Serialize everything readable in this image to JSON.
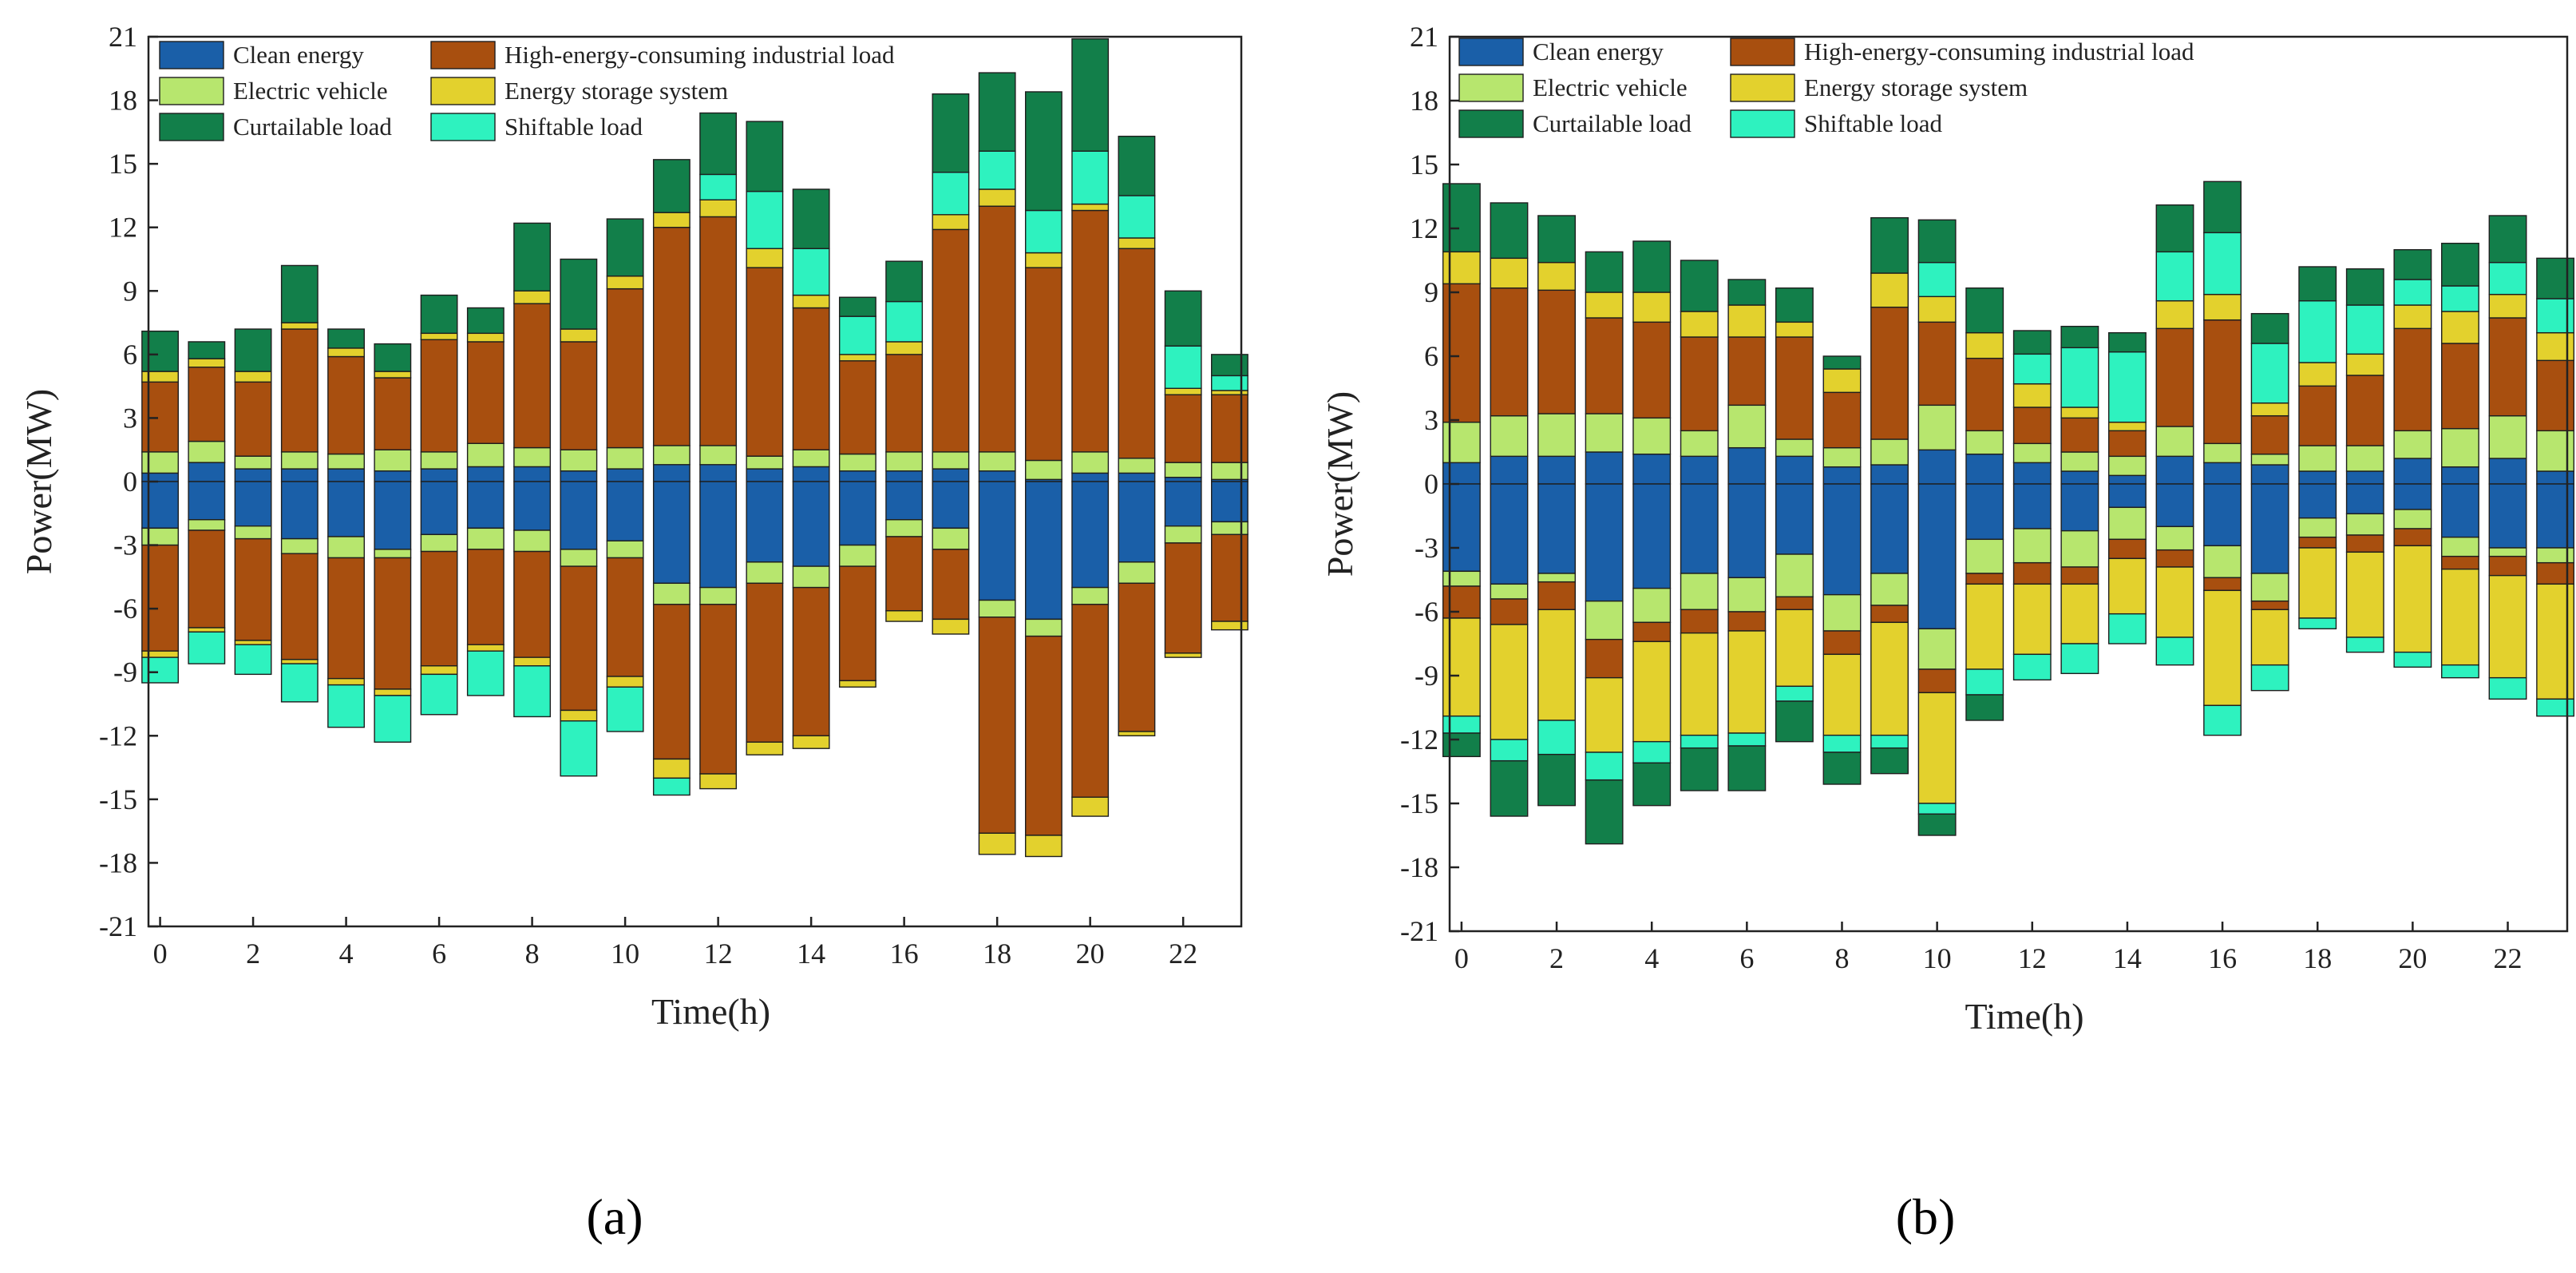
{
  "chart_data": [
    {
      "type": "bar",
      "stacked": true,
      "panel_label": "(a)",
      "xlabel": "Time(h)",
      "ylabel": "Power(MW)",
      "ylim": [
        -21,
        21
      ],
      "yticks": [
        "-21",
        "-18",
        "-15",
        "-12",
        "-9",
        "-6",
        "-3",
        "0",
        "3",
        "6",
        "9",
        "12",
        "15",
        "18",
        "21"
      ],
      "xticks": [
        "0",
        "2",
        "4",
        "6",
        "8",
        "10",
        "12",
        "14",
        "16",
        "18",
        "20",
        "22"
      ],
      "x": [
        0,
        1,
        2,
        3,
        4,
        5,
        6,
        7,
        8,
        9,
        10,
        11,
        12,
        13,
        14,
        15,
        16,
        17,
        18,
        19,
        20,
        21,
        22,
        23
      ],
      "series": [
        {
          "name": "Clean energy",
          "positive": [
            0.4,
            0.9,
            0.6,
            0.6,
            0.6,
            0.5,
            0.6,
            0.7,
            0.7,
            0.5,
            0.6,
            0.8,
            0.8,
            0.6,
            0.7,
            0.5,
            0.5,
            0.6,
            0.5,
            0.1,
            0.4,
            0.4,
            0.2,
            0.1
          ],
          "negative": [
            -2.2,
            -1.8,
            -2.1,
            -2.7,
            -2.6,
            -3.2,
            -2.5,
            -2.2,
            -2.3,
            -3.2,
            -2.8,
            -4.8,
            -5.0,
            -3.8,
            -4.0,
            -3.0,
            -1.8,
            -2.2,
            -5.6,
            -6.5,
            -5.0,
            -3.8,
            -2.1,
            -1.9
          ]
        },
        {
          "name": "Electric vehicle",
          "positive": [
            1.0,
            1.0,
            0.6,
            0.8,
            0.7,
            1.0,
            0.8,
            1.1,
            0.9,
            1.0,
            1.0,
            0.9,
            0.9,
            0.6,
            0.8,
            0.8,
            0.9,
            0.8,
            0.9,
            0.9,
            1.0,
            0.7,
            0.7,
            0.8
          ],
          "negative": [
            -0.8,
            -0.5,
            -0.6,
            -0.7,
            -1.0,
            -0.4,
            -0.8,
            -1.0,
            -1.0,
            -0.8,
            -0.8,
            -1.0,
            -0.8,
            -1.0,
            -1.0,
            -1.0,
            -0.8,
            -1.0,
            -0.8,
            -0.8,
            -0.8,
            -1.0,
            -0.8,
            -0.6
          ]
        },
        {
          "name": "High-energy-consuming industrial load",
          "positive": [
            3.3,
            3.5,
            3.5,
            5.8,
            4.6,
            3.4,
            5.3,
            4.8,
            6.8,
            5.1,
            7.5,
            10.3,
            10.8,
            8.9,
            6.7,
            4.4,
            4.6,
            10.5,
            11.6,
            9.1,
            11.4,
            9.9,
            3.2,
            3.2
          ],
          "negative": [
            -5.0,
            -4.6,
            -4.8,
            -5.0,
            -5.7,
            -6.2,
            -5.4,
            -4.5,
            -5.0,
            -6.8,
            -5.6,
            -7.3,
            -8.0,
            -7.5,
            -7.0,
            -5.4,
            -3.5,
            -3.3,
            -10.2,
            -9.4,
            -9.1,
            -7.0,
            -5.2,
            -4.1
          ]
        },
        {
          "name": "Energy storage system",
          "positive": [
            0.5,
            0.4,
            0.5,
            0.3,
            0.4,
            0.3,
            0.3,
            0.4,
            0.6,
            0.6,
            0.6,
            0.7,
            0.8,
            0.9,
            0.6,
            0.3,
            0.6,
            0.7,
            0.8,
            0.7,
            0.3,
            0.5,
            0.3,
            0.2
          ],
          "negative": [
            -0.3,
            -0.2,
            -0.2,
            -0.2,
            -0.3,
            -0.3,
            -0.4,
            -0.3,
            -0.4,
            -0.5,
            -0.5,
            -0.9,
            -0.7,
            -0.6,
            -0.6,
            -0.3,
            -0.5,
            -0.7,
            -1.0,
            -1.0,
            -0.9,
            -0.2,
            -0.2,
            -0.4
          ]
        },
        {
          "name": "Shiftable load",
          "positive": [
            0,
            0,
            0,
            0,
            0,
            0,
            0,
            0,
            0,
            0,
            0,
            0,
            1.2,
            2.7,
            2.2,
            1.8,
            1.9,
            2.0,
            1.8,
            2.0,
            2.5,
            2.0,
            2.0,
            0.7
          ],
          "negative": [
            -1.2,
            -1.5,
            -1.4,
            -1.8,
            -2.0,
            -2.2,
            -1.9,
            -2.1,
            -2.4,
            -2.6,
            -2.1,
            -0.8,
            0,
            0,
            0,
            0,
            0,
            0,
            0,
            0,
            0,
            0,
            0,
            0
          ]
        },
        {
          "name": "Curtailable load",
          "positive": [
            1.9,
            0.8,
            2.0,
            2.7,
            0.9,
            1.3,
            1.8,
            1.2,
            3.2,
            3.3,
            2.7,
            2.5,
            2.9,
            3.3,
            2.8,
            0.9,
            1.9,
            3.7,
            3.7,
            5.6,
            5.3,
            2.8,
            2.6,
            1.0
          ],
          "negative": [
            0,
            0,
            0,
            0,
            0,
            0,
            0,
            0,
            0,
            0,
            0,
            0,
            0,
            0,
            0,
            0,
            0,
            0,
            0,
            0,
            0,
            0,
            0,
            0
          ]
        }
      ]
    },
    {
      "type": "bar",
      "stacked": true,
      "panel_label": "(b)",
      "xlabel": "Time(h)",
      "ylabel": "Power(MW)",
      "ylim": [
        -21,
        21
      ],
      "yticks": [
        "-21",
        "-18",
        "-15",
        "-12",
        "-9",
        "-6",
        "-3",
        "0",
        "3",
        "6",
        "9",
        "12",
        "15",
        "18",
        "21"
      ],
      "xticks": [
        "0",
        "2",
        "4",
        "6",
        "8",
        "10",
        "12",
        "14",
        "16",
        "18",
        "20",
        "22"
      ],
      "x": [
        0,
        1,
        2,
        3,
        4,
        5,
        6,
        7,
        8,
        9,
        10,
        11,
        12,
        13,
        14,
        15,
        16,
        17,
        18,
        19,
        20,
        21,
        22,
        23
      ],
      "series": [
        {
          "name": "Clean energy",
          "positive": [
            1.0,
            1.3,
            1.3,
            1.5,
            1.4,
            1.3,
            1.7,
            1.3,
            0.8,
            0.9,
            1.6,
            1.4,
            1.0,
            0.6,
            0.4,
            1.3,
            1.0,
            0.9,
            0.6,
            0.6,
            1.2,
            0.8,
            1.2,
            0.6
          ],
          "negative": [
            -4.1,
            -4.7,
            -4.2,
            -5.5,
            -4.9,
            -4.2,
            -4.4,
            -3.3,
            -5.2,
            -4.2,
            -6.8,
            -2.6,
            -2.1,
            -2.2,
            -1.1,
            -2.0,
            -2.9,
            -4.2,
            -1.6,
            -1.4,
            -1.2,
            -2.5,
            -3.0,
            -3.0
          ]
        },
        {
          "name": "Electric vehicle",
          "positive": [
            1.9,
            1.9,
            2.0,
            1.8,
            1.7,
            1.2,
            2.0,
            0.8,
            0.9,
            1.2,
            2.1,
            1.1,
            0.9,
            0.9,
            0.9,
            1.4,
            0.9,
            0.5,
            1.2,
            1.2,
            1.3,
            1.8,
            2.0,
            1.9
          ],
          "negative": [
            -0.7,
            -0.7,
            -0.4,
            -1.8,
            -1.6,
            -1.7,
            -1.6,
            -2.0,
            -1.7,
            -1.5,
            -1.9,
            -1.6,
            -1.6,
            -1.7,
            -1.5,
            -1.1,
            -1.5,
            -1.3,
            -0.9,
            -1.0,
            -0.9,
            -0.9,
            -0.4,
            -0.7
          ]
        },
        {
          "name": "High-energy-consuming industrial load",
          "positive": [
            6.5,
            6.0,
            5.8,
            4.5,
            4.5,
            4.4,
            3.2,
            4.8,
            2.6,
            6.2,
            3.9,
            3.4,
            1.7,
            1.6,
            1.2,
            4.6,
            5.8,
            1.8,
            2.8,
            3.3,
            4.8,
            4.0,
            4.6,
            3.3
          ],
          "negative": [
            -1.5,
            -1.2,
            -1.3,
            -1.8,
            -0.9,
            -1.1,
            -0.9,
            -0.6,
            -1.1,
            -0.8,
            -1.1,
            -0.5,
            -1.0,
            -0.8,
            -0.9,
            -0.8,
            -0.6,
            -0.4,
            -0.5,
            -0.8,
            -0.8,
            -0.6,
            -0.9,
            -1.0
          ]
        },
        {
          "name": "Energy storage system",
          "positive": [
            1.5,
            1.4,
            1.3,
            1.2,
            1.4,
            1.2,
            1.5,
            0.7,
            1.1,
            1.6,
            1.2,
            1.2,
            1.1,
            0.5,
            0.4,
            1.3,
            1.2,
            0.6,
            1.1,
            1.0,
            1.1,
            1.5,
            1.1,
            1.3
          ],
          "negative": [
            -4.6,
            -5.4,
            -5.2,
            -3.5,
            -4.7,
            -4.8,
            -4.8,
            -3.6,
            -3.8,
            -5.3,
            -5.2,
            -4.0,
            -3.3,
            -2.8,
            -2.6,
            -3.3,
            -5.4,
            -2.6,
            -3.3,
            -4.0,
            -5.0,
            -4.5,
            -4.8,
            -5.4
          ]
        },
        {
          "name": "Shiftable load",
          "positive": [
            0,
            0,
            0,
            0,
            0,
            0,
            0,
            0,
            0,
            0,
            1.6,
            0,
            1.4,
            2.8,
            3.3,
            2.3,
            2.9,
            2.8,
            2.9,
            2.3,
            1.2,
            1.2,
            1.5,
            1.6
          ],
          "negative": [
            -0.8,
            -1.0,
            -1.6,
            -1.3,
            -1.0,
            -0.6,
            -0.6,
            -0.7,
            -0.8,
            -0.6,
            -0.5,
            -1.2,
            -1.2,
            -1.4,
            -1.4,
            -1.3,
            -1.4,
            -1.2,
            -0.5,
            -0.7,
            -0.7,
            -0.6,
            -1.0,
            -0.8
          ]
        },
        {
          "name": "Curtailable load",
          "positive": [
            3.2,
            2.6,
            2.2,
            1.9,
            2.4,
            2.4,
            1.2,
            1.6,
            0.6,
            2.6,
            2.0,
            2.1,
            1.1,
            1.0,
            0.9,
            2.2,
            2.4,
            1.4,
            1.6,
            1.7,
            1.4,
            2.0,
            2.2,
            1.9
          ],
          "negative": [
            -1.1,
            -2.6,
            -2.4,
            -3.0,
            -2.0,
            -2.0,
            -2.1,
            -1.9,
            -1.5,
            -1.2,
            -1.0,
            -1.2,
            0,
            0,
            0,
            0,
            0,
            0,
            0,
            0,
            0,
            0,
            0,
            0
          ]
        }
      ]
    }
  ],
  "colors": {
    "Clean energy": "#1a5fa8",
    "High-energy-consuming industrial load": "#a84f0f",
    "Electric vehicle": "#b7e66e",
    "Energy storage system": "#e3d12d",
    "Curtailable load": "#127f4a",
    "Shiftable load": "#2ef2bf"
  }
}
